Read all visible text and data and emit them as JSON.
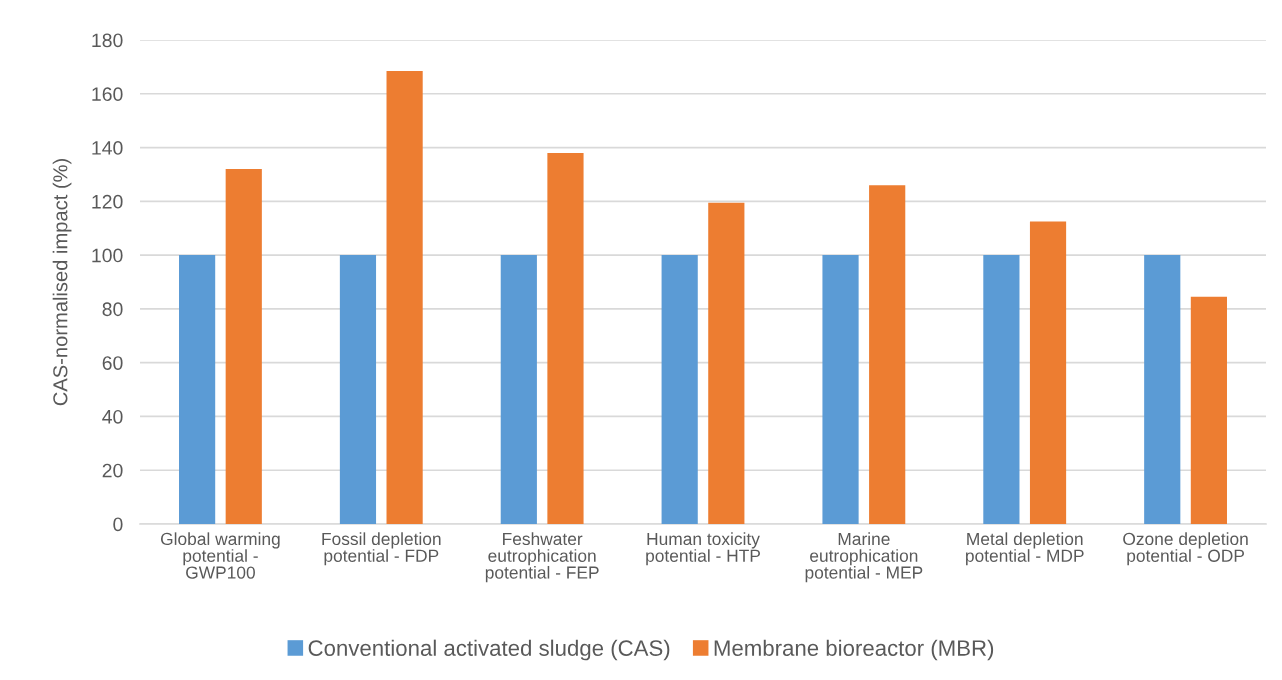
{
  "chart_data": {
    "type": "bar",
    "ylabel": "CAS-normalised impact (%)",
    "categories": [
      "Global warming\npotential -\nGWP100",
      "Fossil depletion\npotential - FDP",
      "Feshwater\neutrophication\npotential - FEP",
      "Human toxicity\npotential - HTP",
      "Marine\neutrophication\npotential - MEP",
      "Metal depletion\npotential - MDP",
      "Ozone depletion\npotential - ODP"
    ],
    "series": [
      {
        "name": "Conventional activated sludge (CAS)",
        "color": "#5b9bd5",
        "values": [
          100,
          100,
          100,
          100,
          100,
          100,
          100
        ]
      },
      {
        "name": "Membrane bioreactor (MBR)",
        "color": "#ed7d31",
        "values": [
          132,
          168.5,
          138,
          119.5,
          126,
          112.5,
          84.5
        ]
      }
    ],
    "ylim": [
      0,
      180
    ],
    "yticks": [
      0,
      20,
      40,
      60,
      80,
      100,
      120,
      140,
      160,
      180
    ],
    "grid": "y",
    "legend": "bottom"
  }
}
